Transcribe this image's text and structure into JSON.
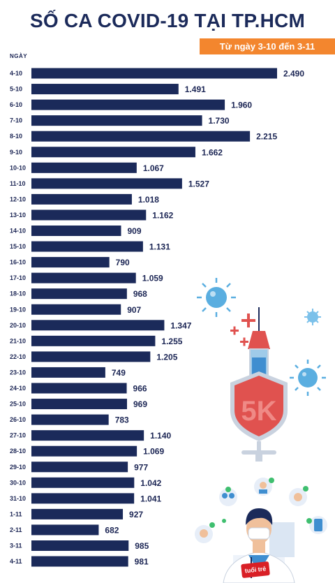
{
  "header": {
    "title": "SỐ CA COVID-19 TẠI TP.HCM",
    "subtitle": "Từ ngày 3-10 đến 3-11",
    "axis_label": "NGÀY"
  },
  "shield_text": "5K",
  "logo_text": "tuổi trẻ",
  "colors": {
    "bar": "#1b2a5a",
    "accent": "#f3862e",
    "shield": "#e0524f",
    "virus": "#5aaee0",
    "syringe_fluid": "#3f8ed0"
  },
  "chart_data": {
    "type": "bar",
    "orientation": "horizontal",
    "title": "SỐ CA COVID-19 TẠI TP.HCM",
    "subtitle": "Từ ngày 3-10 đến 3-11",
    "ylabel": "NGÀY",
    "categories": [
      "4-10",
      "5-10",
      "6-10",
      "7-10",
      "8-10",
      "9-10",
      "10-10",
      "11-10",
      "12-10",
      "13-10",
      "14-10",
      "15-10",
      "16-10",
      "17-10",
      "18-10",
      "19-10",
      "20-10",
      "21-10",
      "22-10",
      "23-10",
      "24-10",
      "25-10",
      "26-10",
      "27-10",
      "28-10",
      "29-10",
      "30-10",
      "31-10",
      "1-11",
      "2-11",
      "3-11",
      "4-11"
    ],
    "values": [
      2490,
      1491,
      1960,
      1730,
      2215,
      1662,
      1067,
      1527,
      1018,
      1162,
      909,
      1131,
      790,
      1059,
      968,
      907,
      1347,
      1255,
      1205,
      749,
      966,
      969,
      783,
      1140,
      1069,
      977,
      1042,
      1041,
      927,
      682,
      985,
      981
    ],
    "value_labels": [
      "2.490",
      "1.491",
      "1.960",
      "1.730",
      "2.215",
      "1.662",
      "1.067",
      "1.527",
      "1.018",
      "1.162",
      "909",
      "1.131",
      "790",
      "1.059",
      "968",
      "907",
      "1.347",
      "1.255",
      "1.205",
      "749",
      "966",
      "969",
      "783",
      "1.140",
      "1.069",
      "977",
      "1.042",
      "1.041",
      "927",
      "682",
      "985",
      "981"
    ],
    "grid": false,
    "legend": "none"
  }
}
